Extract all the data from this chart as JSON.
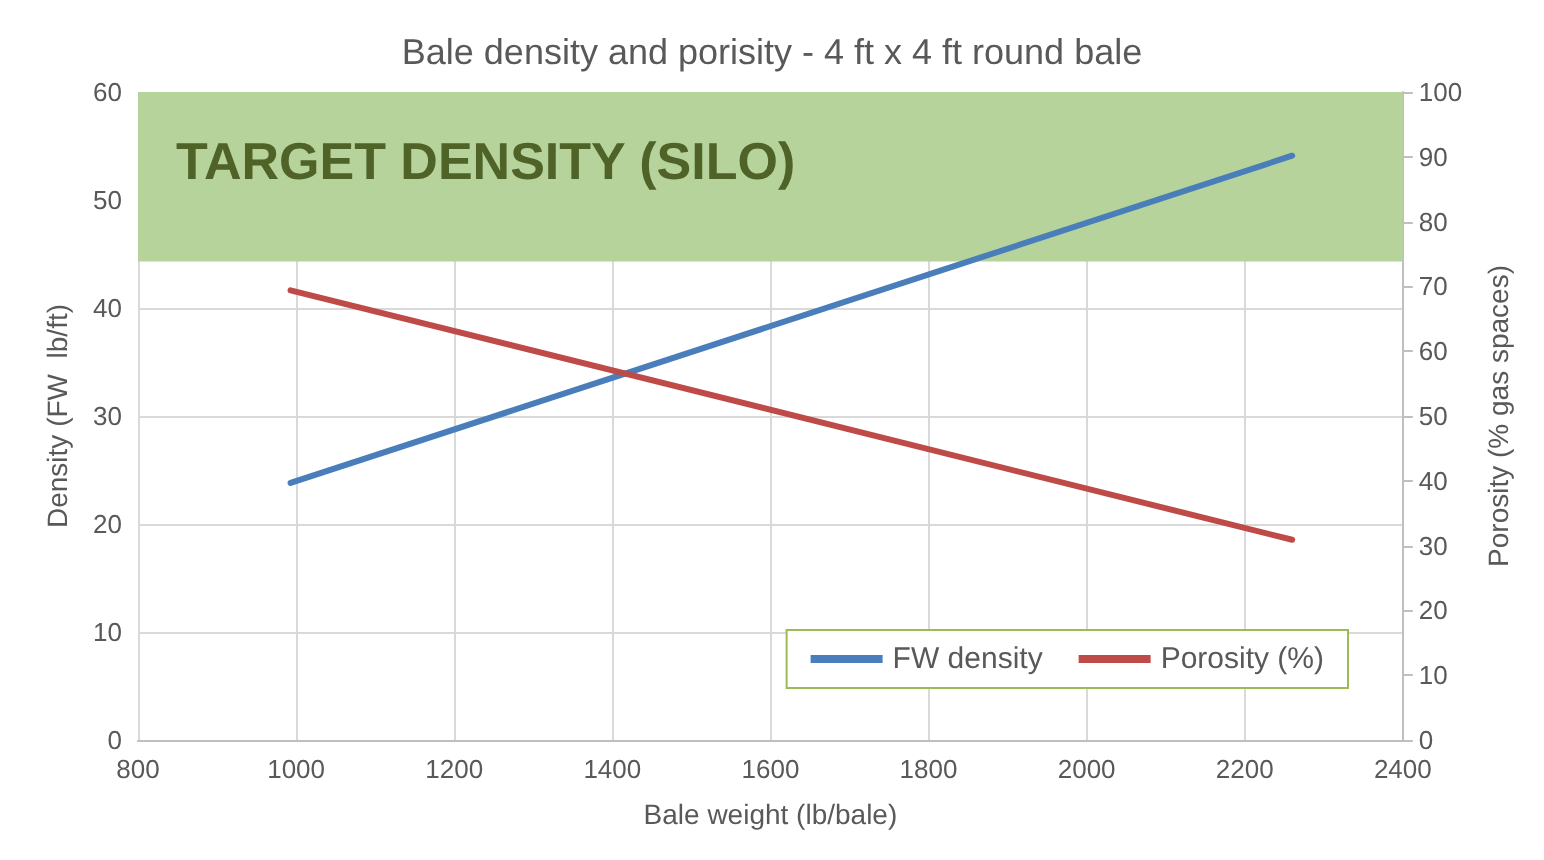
{
  "chart_data": {
    "type": "line",
    "title": "Bale density and porisity - 4 ft x 4 ft round bale",
    "xlabel": "Bale weight (lb/bale)",
    "ylabel": "Density (FW  lb/ft)",
    "y2label": "Porosity (% gas spaces)",
    "x": [
      993,
      2260
    ],
    "series": [
      {
        "name": "FW density",
        "color": "#4a7ebb",
        "values": [
          23.8,
          54.1
        ]
      },
      {
        "name": "Porosity (%)",
        "color": "#be4b48",
        "values": [
          69.4,
          30.9
        ],
        "axis": "y2"
      }
    ],
    "xlim": [
      800,
      2400
    ],
    "xticks": [
      800,
      1000,
      1200,
      1400,
      1600,
      1800,
      2000,
      2200,
      2400
    ],
    "ylim": [
      0,
      60
    ],
    "yticks": [
      0,
      10,
      20,
      30,
      40,
      50,
      60
    ],
    "y2lim": [
      0,
      100
    ],
    "y2ticks": [
      0,
      10,
      20,
      30,
      40,
      50,
      60,
      70,
      80,
      90,
      100
    ],
    "bands": [
      {
        "axis": "y",
        "from": 44.3,
        "to": 60,
        "label": "TARGET DENSITY (SILO)",
        "color": "#b5d39a"
      }
    ],
    "grid": true,
    "legend": "bottom right",
    "marker": "none",
    "line_style": "solid"
  }
}
